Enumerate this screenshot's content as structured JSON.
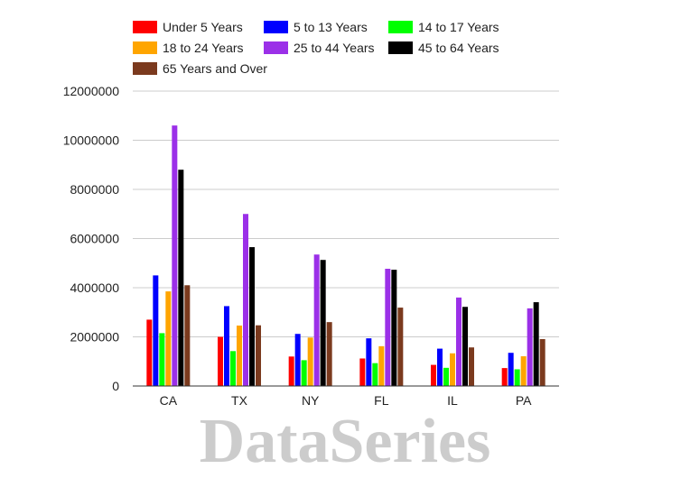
{
  "watermark": "DataSeries",
  "chart_data": {
    "type": "bar",
    "title": "",
    "xlabel": "",
    "ylabel": "",
    "ylim": [
      0,
      12000000
    ],
    "yticks": [
      0,
      2000000,
      4000000,
      6000000,
      8000000,
      10000000,
      12000000
    ],
    "grid": true,
    "legend_position": "top",
    "categories": [
      "CA",
      "TX",
      "NY",
      "FL",
      "IL",
      "PA"
    ],
    "series": [
      {
        "name": "Under 5 Years",
        "color": "#ff0000",
        "values": [
          2700000,
          2000000,
          1200000,
          1120000,
          860000,
          730000
        ]
      },
      {
        "name": "5 to 13 Years",
        "color": "#0000ff",
        "values": [
          4500000,
          3250000,
          2120000,
          1940000,
          1520000,
          1350000
        ]
      },
      {
        "name": "14 to 17 Years",
        "color": "#00ff00",
        "values": [
          2150000,
          1420000,
          1050000,
          930000,
          740000,
          680000
        ]
      },
      {
        "name": "18 to 24 Years",
        "color": "#ffa500",
        "values": [
          3850000,
          2460000,
          1970000,
          1620000,
          1330000,
          1210000
        ]
      },
      {
        "name": "25 to 44 Years",
        "color": "#9b30e8",
        "values": [
          10600000,
          7000000,
          5350000,
          4770000,
          3600000,
          3160000
        ]
      },
      {
        "name": "45 to 64 Years",
        "color": "#000000",
        "values": [
          8800000,
          5650000,
          5130000,
          4730000,
          3220000,
          3410000
        ]
      },
      {
        "name": "65 Years and Over",
        "color": "#7b3a1e",
        "values": [
          4100000,
          2470000,
          2600000,
          3190000,
          1570000,
          1910000
        ]
      }
    ]
  }
}
